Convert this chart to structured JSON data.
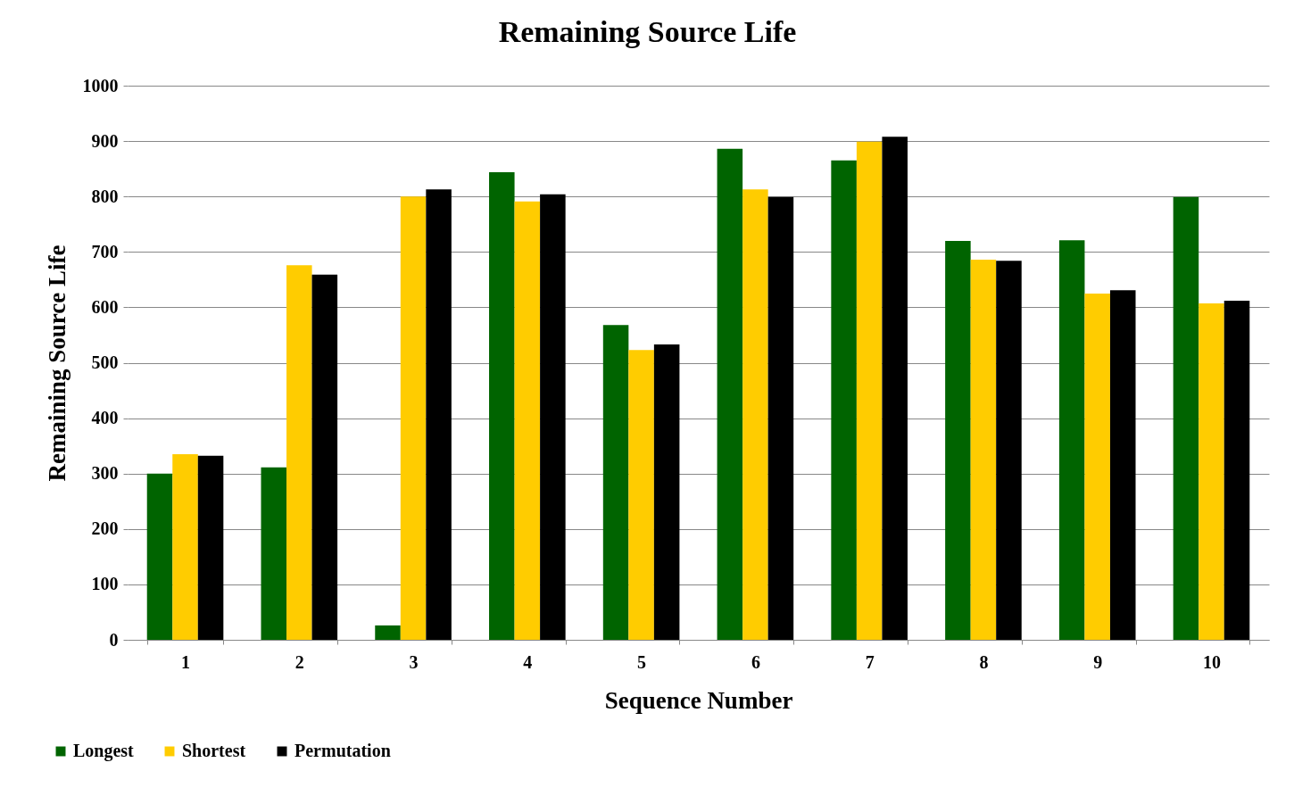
{
  "chart_data": {
    "type": "bar",
    "title": "Remaining Source Life",
    "xlabel": "Sequence Number",
    "ylabel": "Remaining Source Life",
    "categories": [
      "1",
      "2",
      "3",
      "4",
      "5",
      "6",
      "7",
      "8",
      "9",
      "10"
    ],
    "series": [
      {
        "name": "Longest",
        "color": "#006400",
        "values": [
          300,
          311,
          26,
          844,
          568,
          886,
          865,
          720,
          721,
          799
        ]
      },
      {
        "name": "Shortest",
        "color": "#ffcc00",
        "values": [
          335,
          676,
          800,
          791,
          523,
          813,
          899,
          686,
          625,
          607
        ]
      },
      {
        "name": "Permutation",
        "color": "#000000",
        "values": [
          332,
          659,
          813,
          804,
          533,
          799,
          908,
          684,
          631,
          612
        ]
      }
    ],
    "ylim": [
      0,
      1000
    ],
    "yticks": [
      0,
      100,
      200,
      300,
      400,
      500,
      600,
      700,
      800,
      900,
      1000
    ],
    "grid": "y",
    "legend": "bottom left"
  }
}
